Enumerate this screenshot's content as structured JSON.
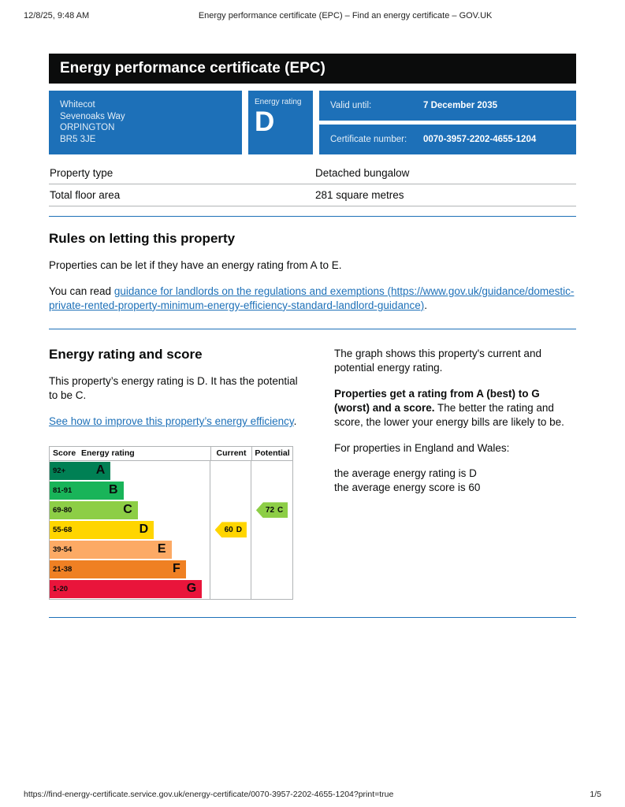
{
  "print_header": {
    "datetime": "12/8/25, 9:48 AM",
    "title": "Energy performance certificate (EPC) – Find an energy certificate – GOV.UK"
  },
  "banner": {
    "title": "Energy performance certificate (EPC)"
  },
  "summary": {
    "address": {
      "lines": [
        "Whitecot",
        "Sevenoaks Way",
        "ORPINGTON",
        "BR5 3JE"
      ]
    },
    "energy_rating": {
      "label": "Energy rating",
      "value": "D"
    },
    "valid_until": {
      "label": "Valid until:",
      "value": "7 December 2035"
    },
    "certificate_number": {
      "label": "Certificate number:",
      "value": "0070-3957-2202-4655-1204"
    }
  },
  "property_details": {
    "rows": [
      {
        "label": "Property type",
        "value": "Detached bungalow"
      },
      {
        "label": "Total floor area",
        "value": "281 square metres"
      }
    ]
  },
  "rules_section": {
    "heading": "Rules on letting this property",
    "para1": "Properties can be let if they have an energy rating from A to E.",
    "para2_prefix": "You can read ",
    "para2_link": "guidance for landlords on the regulations and exemptions (https://www.gov.uk/guidance/domestic-private-rented-property-minimum-energy-efficiency-standard-landlord-guidance)",
    "para2_suffix": "."
  },
  "rating_section": {
    "heading": "Energy rating and score",
    "para1": "This property’s energy rating is D. It has the potential to be C.",
    "link_text": "See how to improve this property’s energy efficiency",
    "link_suffix": ".",
    "right": {
      "para1": "The graph shows this property's current and potential energy rating.",
      "para2_bold": "Properties get a rating from A (best) to G (worst) and a score.",
      "para2_rest": " The better the rating and score, the lower your energy bills are likely to be.",
      "para3": "For properties in England and Wales:",
      "para4_line1": "the average energy rating is D",
      "para4_line2": "the average energy score is 60"
    }
  },
  "chart_data": {
    "type": "epc-band-chart",
    "headers": {
      "score": "Score",
      "rating": "Energy rating",
      "current": "Current",
      "potential": "Potential"
    },
    "bands": [
      {
        "score": "92+",
        "letter": "A",
        "color": "#008054"
      },
      {
        "score": "81-91",
        "letter": "B",
        "color": "#19b459"
      },
      {
        "score": "69-80",
        "letter": "C",
        "color": "#8dce46"
      },
      {
        "score": "55-68",
        "letter": "D",
        "color": "#ffd500"
      },
      {
        "score": "39-54",
        "letter": "E",
        "color": "#fcaa65"
      },
      {
        "score": "21-38",
        "letter": "F",
        "color": "#ef8023"
      },
      {
        "score": "1-20",
        "letter": "G",
        "color": "#e9153b"
      }
    ],
    "current": {
      "score": "60",
      "letter": "D",
      "band": "D",
      "color": "#ffd500"
    },
    "potential": {
      "score": "72",
      "letter": "C",
      "band": "C",
      "color": "#8dce46"
    }
  },
  "colors": {
    "govuk_blue": "#1d70b8",
    "banner_black": "#0b0c0c",
    "table_border_grey": "#b1b4b6"
  },
  "footer": {
    "url": "https://find-energy-certificate.service.gov.uk/energy-certificate/0070-3957-2202-4655-1204?print=true",
    "page": "1/5"
  }
}
